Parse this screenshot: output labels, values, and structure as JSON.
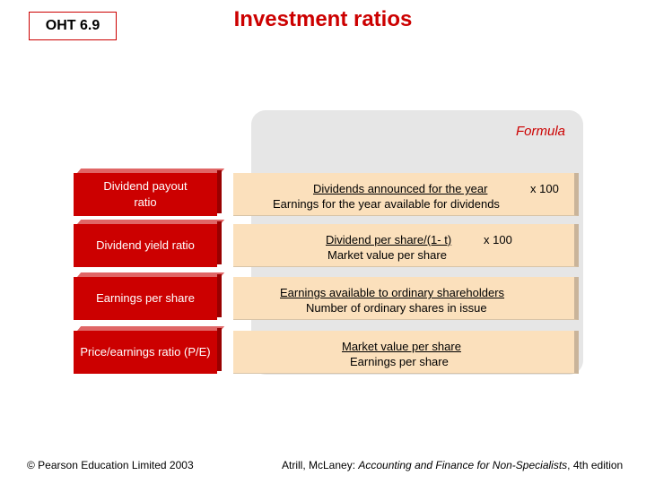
{
  "header": {
    "badge": "OHT 6.9",
    "title": "Investment ratios"
  },
  "formula_heading": "Formula",
  "rows": [
    {
      "name": "Dividend payout ratio",
      "numerator": "Dividends announced for the year",
      "multiplier": "x 100",
      "denominator": "Earnings for the year available for dividends"
    },
    {
      "name": "Dividend yield ratio",
      "numerator": "Dividend per share/(1- t)",
      "multiplier": "x 100",
      "denominator": "Market value per share"
    },
    {
      "name": "Earnings per share",
      "numerator": "Earnings available to ordinary shareholders",
      "denominator": "Number of ordinary shares in issue"
    },
    {
      "name": "Price/earnings ratio (P/E)",
      "numerator": "Market value per share",
      "denominator": "Earnings per share"
    }
  ],
  "footer": {
    "copyright": "© Pearson Education Limited 2003",
    "citation_authors": "Atrill, McLaney: ",
    "citation_title": "Accounting and Finance for Non-Specialists",
    "citation_edition": ", 4th edition"
  },
  "colors": {
    "accent_red": "#cc0000",
    "formula_fill": "#fbe0bc",
    "panel_grey": "#e6e6e6"
  }
}
